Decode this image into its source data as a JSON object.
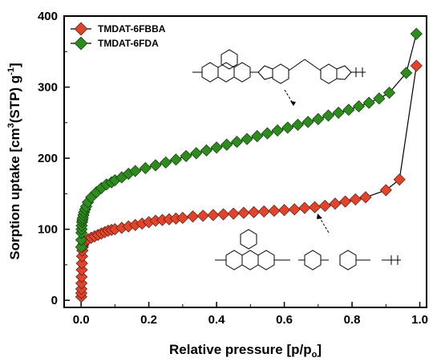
{
  "chart_data": {
    "type": "scatter",
    "xlabel": "Relative pressure [p/p",
    "xlabel_sub": "o",
    "xlabel_end": "]",
    "ylabel": "Sorption uptake [cm",
    "ylabel_sup": "3",
    "ylabel_mid": "(STP) g",
    "ylabel_sup2": "-1",
    "ylabel_end": "]",
    "xlim": [
      -0.05,
      1.02
    ],
    "ylim": [
      -10,
      400
    ],
    "xticks": [
      0.0,
      0.2,
      0.4,
      0.6,
      0.8,
      1.0
    ],
    "xtick_labels": [
      "0.0",
      "0.2",
      "0.4",
      "0.6",
      "0.8",
      "1.0"
    ],
    "yticks": [
      0,
      100,
      200,
      300,
      400
    ],
    "ytick_labels": [
      "0",
      "100",
      "200",
      "300",
      "400"
    ],
    "grid": false,
    "legend_position": "top-left",
    "series": [
      {
        "name": "TMDAT-6FBBA",
        "color": "#e0452b",
        "marker": "diamond",
        "x": [
          0.0005,
          0.0007,
          0.0009,
          0.0012,
          0.0015,
          0.002,
          0.0025,
          0.003,
          0.004,
          0.005,
          0.006,
          0.008,
          0.01,
          0.015,
          0.02,
          0.03,
          0.04,
          0.05,
          0.06,
          0.07,
          0.08,
          0.09,
          0.1,
          0.12,
          0.14,
          0.16,
          0.18,
          0.2,
          0.22,
          0.24,
          0.26,
          0.28,
          0.3,
          0.33,
          0.36,
          0.39,
          0.42,
          0.45,
          0.48,
          0.51,
          0.54,
          0.57,
          0.6,
          0.63,
          0.66,
          0.69,
          0.72,
          0.75,
          0.78,
          0.81,
          0.84,
          0.9,
          0.94,
          0.99
        ],
        "y": [
          5,
          10,
          16,
          24,
          33,
          43,
          52,
          62,
          70,
          75,
          78,
          80,
          82,
          84,
          86,
          88,
          90,
          92,
          94,
          96,
          98,
          99,
          100,
          102,
          104,
          106,
          108,
          110,
          112,
          113,
          114,
          115,
          116,
          118,
          119,
          120,
          121,
          122,
          123,
          124,
          125,
          126,
          127,
          128,
          130,
          131,
          133,
          136,
          139,
          142,
          145,
          155,
          170,
          330
        ]
      },
      {
        "name": "TMDAT-6FDA",
        "color": "#2e8b1e",
        "marker": "diamond",
        "x": [
          0.0005,
          0.0008,
          0.001,
          0.0015,
          0.002,
          0.003,
          0.004,
          0.005,
          0.007,
          0.009,
          0.012,
          0.015,
          0.02,
          0.03,
          0.045,
          0.06,
          0.075,
          0.09,
          0.1,
          0.12,
          0.14,
          0.16,
          0.19,
          0.22,
          0.25,
          0.28,
          0.31,
          0.34,
          0.37,
          0.4,
          0.43,
          0.46,
          0.49,
          0.52,
          0.55,
          0.58,
          0.61,
          0.64,
          0.67,
          0.7,
          0.73,
          0.76,
          0.79,
          0.82,
          0.85,
          0.88,
          0.91,
          0.96,
          0.99
        ],
        "y": [
          75,
          85,
          95,
          100,
          105,
          110,
          113,
          116,
          120,
          124,
          128,
          132,
          138,
          145,
          152,
          158,
          163,
          166,
          169,
          173,
          178,
          182,
          186,
          190,
          194,
          198,
          203,
          207,
          211,
          215,
          219,
          223,
          227,
          231,
          235,
          239,
          243,
          247,
          251,
          255,
          260,
          264,
          268,
          273,
          278,
          284,
          292,
          320,
          375
        ]
      }
    ]
  }
}
